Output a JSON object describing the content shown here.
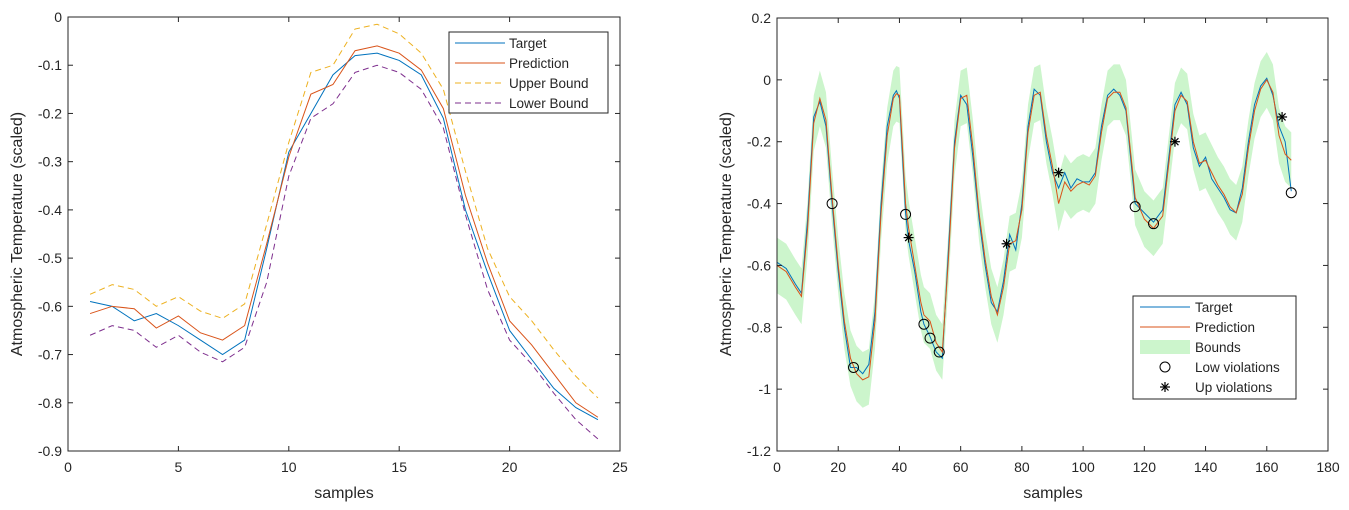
{
  "chart_data": [
    {
      "type": "line",
      "xlabel": "samples",
      "ylabel": "Atmospheric Temperature (scaled)",
      "xlim": [
        0,
        25
      ],
      "ylim": [
        -0.9,
        0
      ],
      "xticks": [
        0,
        5,
        10,
        15,
        20,
        25
      ],
      "yticks": [
        0,
        -0.1,
        -0.2,
        -0.3,
        -0.4,
        -0.5,
        -0.6,
        -0.7,
        -0.8,
        -0.9
      ],
      "xtick_labels": [
        "0",
        "5",
        "10",
        "15",
        "20",
        "25"
      ],
      "ytick_labels": [
        "0",
        "-0.1",
        "-0.2",
        "-0.3",
        "-0.4",
        "-0.5",
        "-0.6",
        "-0.7",
        "-0.8",
        "-0.9"
      ],
      "legend_position": "top-right",
      "x": [
        1,
        2,
        3,
        4,
        5,
        6,
        7,
        8,
        9,
        10,
        11,
        12,
        13,
        14,
        15,
        16,
        17,
        18,
        19,
        20,
        21,
        22,
        23,
        24
      ],
      "series": [
        {
          "name": "Target",
          "color": "#0072BD",
          "dash": "solid",
          "values": [
            -0.59,
            -0.6,
            -0.63,
            -0.615,
            -0.64,
            -0.67,
            -0.7,
            -0.67,
            -0.48,
            -0.28,
            -0.2,
            -0.12,
            -0.08,
            -0.075,
            -0.09,
            -0.12,
            -0.21,
            -0.4,
            -0.53,
            -0.65,
            -0.71,
            -0.77,
            -0.81,
            -0.835
          ]
        },
        {
          "name": "Prediction",
          "color": "#D95319",
          "dash": "solid",
          "values": [
            -0.615,
            -0.6,
            -0.605,
            -0.645,
            -0.62,
            -0.655,
            -0.67,
            -0.64,
            -0.47,
            -0.29,
            -0.16,
            -0.14,
            -0.07,
            -0.06,
            -0.075,
            -0.11,
            -0.19,
            -0.37,
            -0.51,
            -0.63,
            -0.68,
            -0.74,
            -0.8,
            -0.83
          ]
        },
        {
          "name": "Upper Bound",
          "color": "#EDB120",
          "dash": "dashed",
          "values": [
            -0.575,
            -0.555,
            -0.565,
            -0.6,
            -0.58,
            -0.61,
            -0.625,
            -0.595,
            -0.43,
            -0.26,
            -0.115,
            -0.1,
            -0.025,
            -0.015,
            -0.035,
            -0.075,
            -0.15,
            -0.32,
            -0.48,
            -0.58,
            -0.63,
            -0.69,
            -0.745,
            -0.79
          ]
        },
        {
          "name": "Lower Bound",
          "color": "#7E2F8E",
          "dash": "dashed",
          "values": [
            -0.66,
            -0.64,
            -0.65,
            -0.685,
            -0.66,
            -0.695,
            -0.715,
            -0.685,
            -0.55,
            -0.33,
            -0.21,
            -0.18,
            -0.115,
            -0.1,
            -0.115,
            -0.15,
            -0.23,
            -0.41,
            -0.565,
            -0.67,
            -0.72,
            -0.78,
            -0.835,
            -0.875
          ]
        }
      ]
    },
    {
      "type": "line",
      "xlabel": "samples",
      "ylabel": "Atmospheric Temperature (scaled)",
      "xlim": [
        0,
        180
      ],
      "ylim": [
        -1.2,
        0.2
      ],
      "xticks": [
        0,
        20,
        40,
        60,
        80,
        100,
        120,
        140,
        160,
        180
      ],
      "yticks": [
        0.2,
        0,
        -0.2,
        -0.4,
        -0.6,
        -0.8,
        -1,
        -1.2
      ],
      "xtick_labels": [
        "0",
        "20",
        "40",
        "60",
        "80",
        "100",
        "120",
        "140",
        "160",
        "180"
      ],
      "ytick_labels": [
        "0.2",
        "0",
        "-0.2",
        "-0.4",
        "-0.6",
        "-0.8",
        "-1",
        "-1.2"
      ],
      "legend_position": "bottom-right",
      "bounds_color": "#CCF5CC",
      "target": {
        "name": "Target",
        "color": "#0072BD",
        "points": [
          [
            0,
            -0.59
          ],
          [
            3,
            -0.61
          ],
          [
            6,
            -0.66
          ],
          [
            8,
            -0.69
          ],
          [
            10,
            -0.45
          ],
          [
            12,
            -0.12
          ],
          [
            14,
            -0.07
          ],
          [
            16,
            -0.15
          ],
          [
            18,
            -0.4
          ],
          [
            20,
            -0.62
          ],
          [
            22,
            -0.8
          ],
          [
            24,
            -0.93
          ],
          [
            26,
            -0.93
          ],
          [
            28,
            -0.95
          ],
          [
            30,
            -0.92
          ],
          [
            32,
            -0.75
          ],
          [
            34,
            -0.4
          ],
          [
            36,
            -0.15
          ],
          [
            38,
            -0.05
          ],
          [
            39,
            -0.035
          ],
          [
            40,
            -0.06
          ],
          [
            41,
            -0.25
          ],
          [
            42,
            -0.43
          ],
          [
            43,
            -0.52
          ],
          [
            45,
            -0.62
          ],
          [
            47,
            -0.75
          ],
          [
            48,
            -0.79
          ],
          [
            50,
            -0.83
          ],
          [
            52,
            -0.88
          ],
          [
            54,
            -0.9
          ],
          [
            56,
            -0.55
          ],
          [
            58,
            -0.2
          ],
          [
            60,
            -0.05
          ],
          [
            62,
            -0.08
          ],
          [
            64,
            -0.25
          ],
          [
            66,
            -0.45
          ],
          [
            68,
            -0.6
          ],
          [
            70,
            -0.72
          ],
          [
            72,
            -0.75
          ],
          [
            74,
            -0.65
          ],
          [
            76,
            -0.5
          ],
          [
            78,
            -0.55
          ],
          [
            80,
            -0.4
          ],
          [
            82,
            -0.15
          ],
          [
            84,
            -0.03
          ],
          [
            86,
            -0.05
          ],
          [
            88,
            -0.2
          ],
          [
            90,
            -0.3
          ],
          [
            92,
            -0.35
          ],
          [
            94,
            -0.3
          ],
          [
            96,
            -0.35
          ],
          [
            98,
            -0.32
          ],
          [
            100,
            -0.33
          ],
          [
            102,
            -0.33
          ],
          [
            104,
            -0.3
          ],
          [
            106,
            -0.15
          ],
          [
            108,
            -0.05
          ],
          [
            110,
            -0.03
          ],
          [
            112,
            -0.05
          ],
          [
            114,
            -0.1
          ],
          [
            116,
            -0.3
          ],
          [
            117,
            -0.4
          ],
          [
            120,
            -0.43
          ],
          [
            123,
            -0.46
          ],
          [
            126,
            -0.42
          ],
          [
            128,
            -0.25
          ],
          [
            130,
            -0.08
          ],
          [
            132,
            -0.04
          ],
          [
            134,
            -0.08
          ],
          [
            136,
            -0.22
          ],
          [
            138,
            -0.28
          ],
          [
            140,
            -0.25
          ],
          [
            142,
            -0.32
          ],
          [
            144,
            -0.35
          ],
          [
            146,
            -0.38
          ],
          [
            148,
            -0.42
          ],
          [
            150,
            -0.43
          ],
          [
            152,
            -0.35
          ],
          [
            154,
            -0.2
          ],
          [
            156,
            -0.08
          ],
          [
            158,
            -0.02
          ],
          [
            160,
            0.005
          ],
          [
            162,
            -0.05
          ],
          [
            164,
            -0.15
          ],
          [
            166,
            -0.2
          ],
          [
            168,
            -0.36
          ]
        ]
      },
      "prediction": {
        "name": "Prediction",
        "color": "#D95319",
        "points": [
          [
            0,
            -0.6
          ],
          [
            3,
            -0.62
          ],
          [
            6,
            -0.67
          ],
          [
            8,
            -0.7
          ],
          [
            10,
            -0.48
          ],
          [
            12,
            -0.14
          ],
          [
            14,
            -0.06
          ],
          [
            16,
            -0.13
          ],
          [
            18,
            -0.38
          ],
          [
            20,
            -0.6
          ],
          [
            22,
            -0.78
          ],
          [
            24,
            -0.9
          ],
          [
            26,
            -0.95
          ],
          [
            28,
            -0.97
          ],
          [
            30,
            -0.96
          ],
          [
            32,
            -0.78
          ],
          [
            34,
            -0.43
          ],
          [
            36,
            -0.18
          ],
          [
            38,
            -0.06
          ],
          [
            39,
            -0.045
          ],
          [
            40,
            -0.05
          ],
          [
            41,
            -0.22
          ],
          [
            42,
            -0.4
          ],
          [
            43,
            -0.48
          ],
          [
            45,
            -0.6
          ],
          [
            47,
            -0.72
          ],
          [
            48,
            -0.76
          ],
          [
            50,
            -0.78
          ],
          [
            52,
            -0.85
          ],
          [
            54,
            -0.88
          ],
          [
            56,
            -0.58
          ],
          [
            58,
            -0.22
          ],
          [
            60,
            -0.06
          ],
          [
            62,
            -0.05
          ],
          [
            64,
            -0.22
          ],
          [
            66,
            -0.43
          ],
          [
            68,
            -0.58
          ],
          [
            70,
            -0.7
          ],
          [
            72,
            -0.76
          ],
          [
            74,
            -0.67
          ],
          [
            76,
            -0.53
          ],
          [
            78,
            -0.52
          ],
          [
            80,
            -0.42
          ],
          [
            82,
            -0.17
          ],
          [
            84,
            -0.05
          ],
          [
            86,
            -0.04
          ],
          [
            88,
            -0.18
          ],
          [
            90,
            -0.28
          ],
          [
            92,
            -0.4
          ],
          [
            94,
            -0.33
          ],
          [
            96,
            -0.36
          ],
          [
            98,
            -0.34
          ],
          [
            100,
            -0.33
          ],
          [
            102,
            -0.34
          ],
          [
            104,
            -0.31
          ],
          [
            106,
            -0.17
          ],
          [
            108,
            -0.06
          ],
          [
            110,
            -0.04
          ],
          [
            112,
            -0.04
          ],
          [
            114,
            -0.09
          ],
          [
            116,
            -0.28
          ],
          [
            117,
            -0.38
          ],
          [
            120,
            -0.45
          ],
          [
            123,
            -0.48
          ],
          [
            126,
            -0.44
          ],
          [
            128,
            -0.27
          ],
          [
            130,
            -0.1
          ],
          [
            132,
            -0.05
          ],
          [
            134,
            -0.07
          ],
          [
            136,
            -0.2
          ],
          [
            138,
            -0.27
          ],
          [
            140,
            -0.26
          ],
          [
            142,
            -0.3
          ],
          [
            144,
            -0.34
          ],
          [
            146,
            -0.37
          ],
          [
            148,
            -0.41
          ],
          [
            150,
            -0.43
          ],
          [
            152,
            -0.37
          ],
          [
            154,
            -0.22
          ],
          [
            156,
            -0.1
          ],
          [
            158,
            -0.03
          ],
          [
            160,
            0.0
          ],
          [
            162,
            -0.04
          ],
          [
            164,
            -0.18
          ],
          [
            166,
            -0.24
          ],
          [
            168,
            -0.26
          ]
        ]
      },
      "bounds": {
        "name": "Bounds",
        "width": 0.09
      },
      "low_violations": {
        "name": "Low violations",
        "marker": "circle",
        "points": [
          [
            18,
            -0.4
          ],
          [
            25,
            -0.93
          ],
          [
            42,
            -0.435
          ],
          [
            48,
            -0.79
          ],
          [
            50,
            -0.835
          ],
          [
            53,
            -0.88
          ],
          [
            117,
            -0.41
          ],
          [
            123,
            -0.465
          ],
          [
            168,
            -0.365
          ]
        ]
      },
      "up_violations": {
        "name": "Up violations",
        "marker": "asterisk",
        "points": [
          [
            43,
            -0.51
          ],
          [
            75,
            -0.53
          ],
          [
            92,
            -0.3
          ],
          [
            130,
            -0.2
          ],
          [
            165,
            -0.12
          ]
        ]
      }
    }
  ]
}
